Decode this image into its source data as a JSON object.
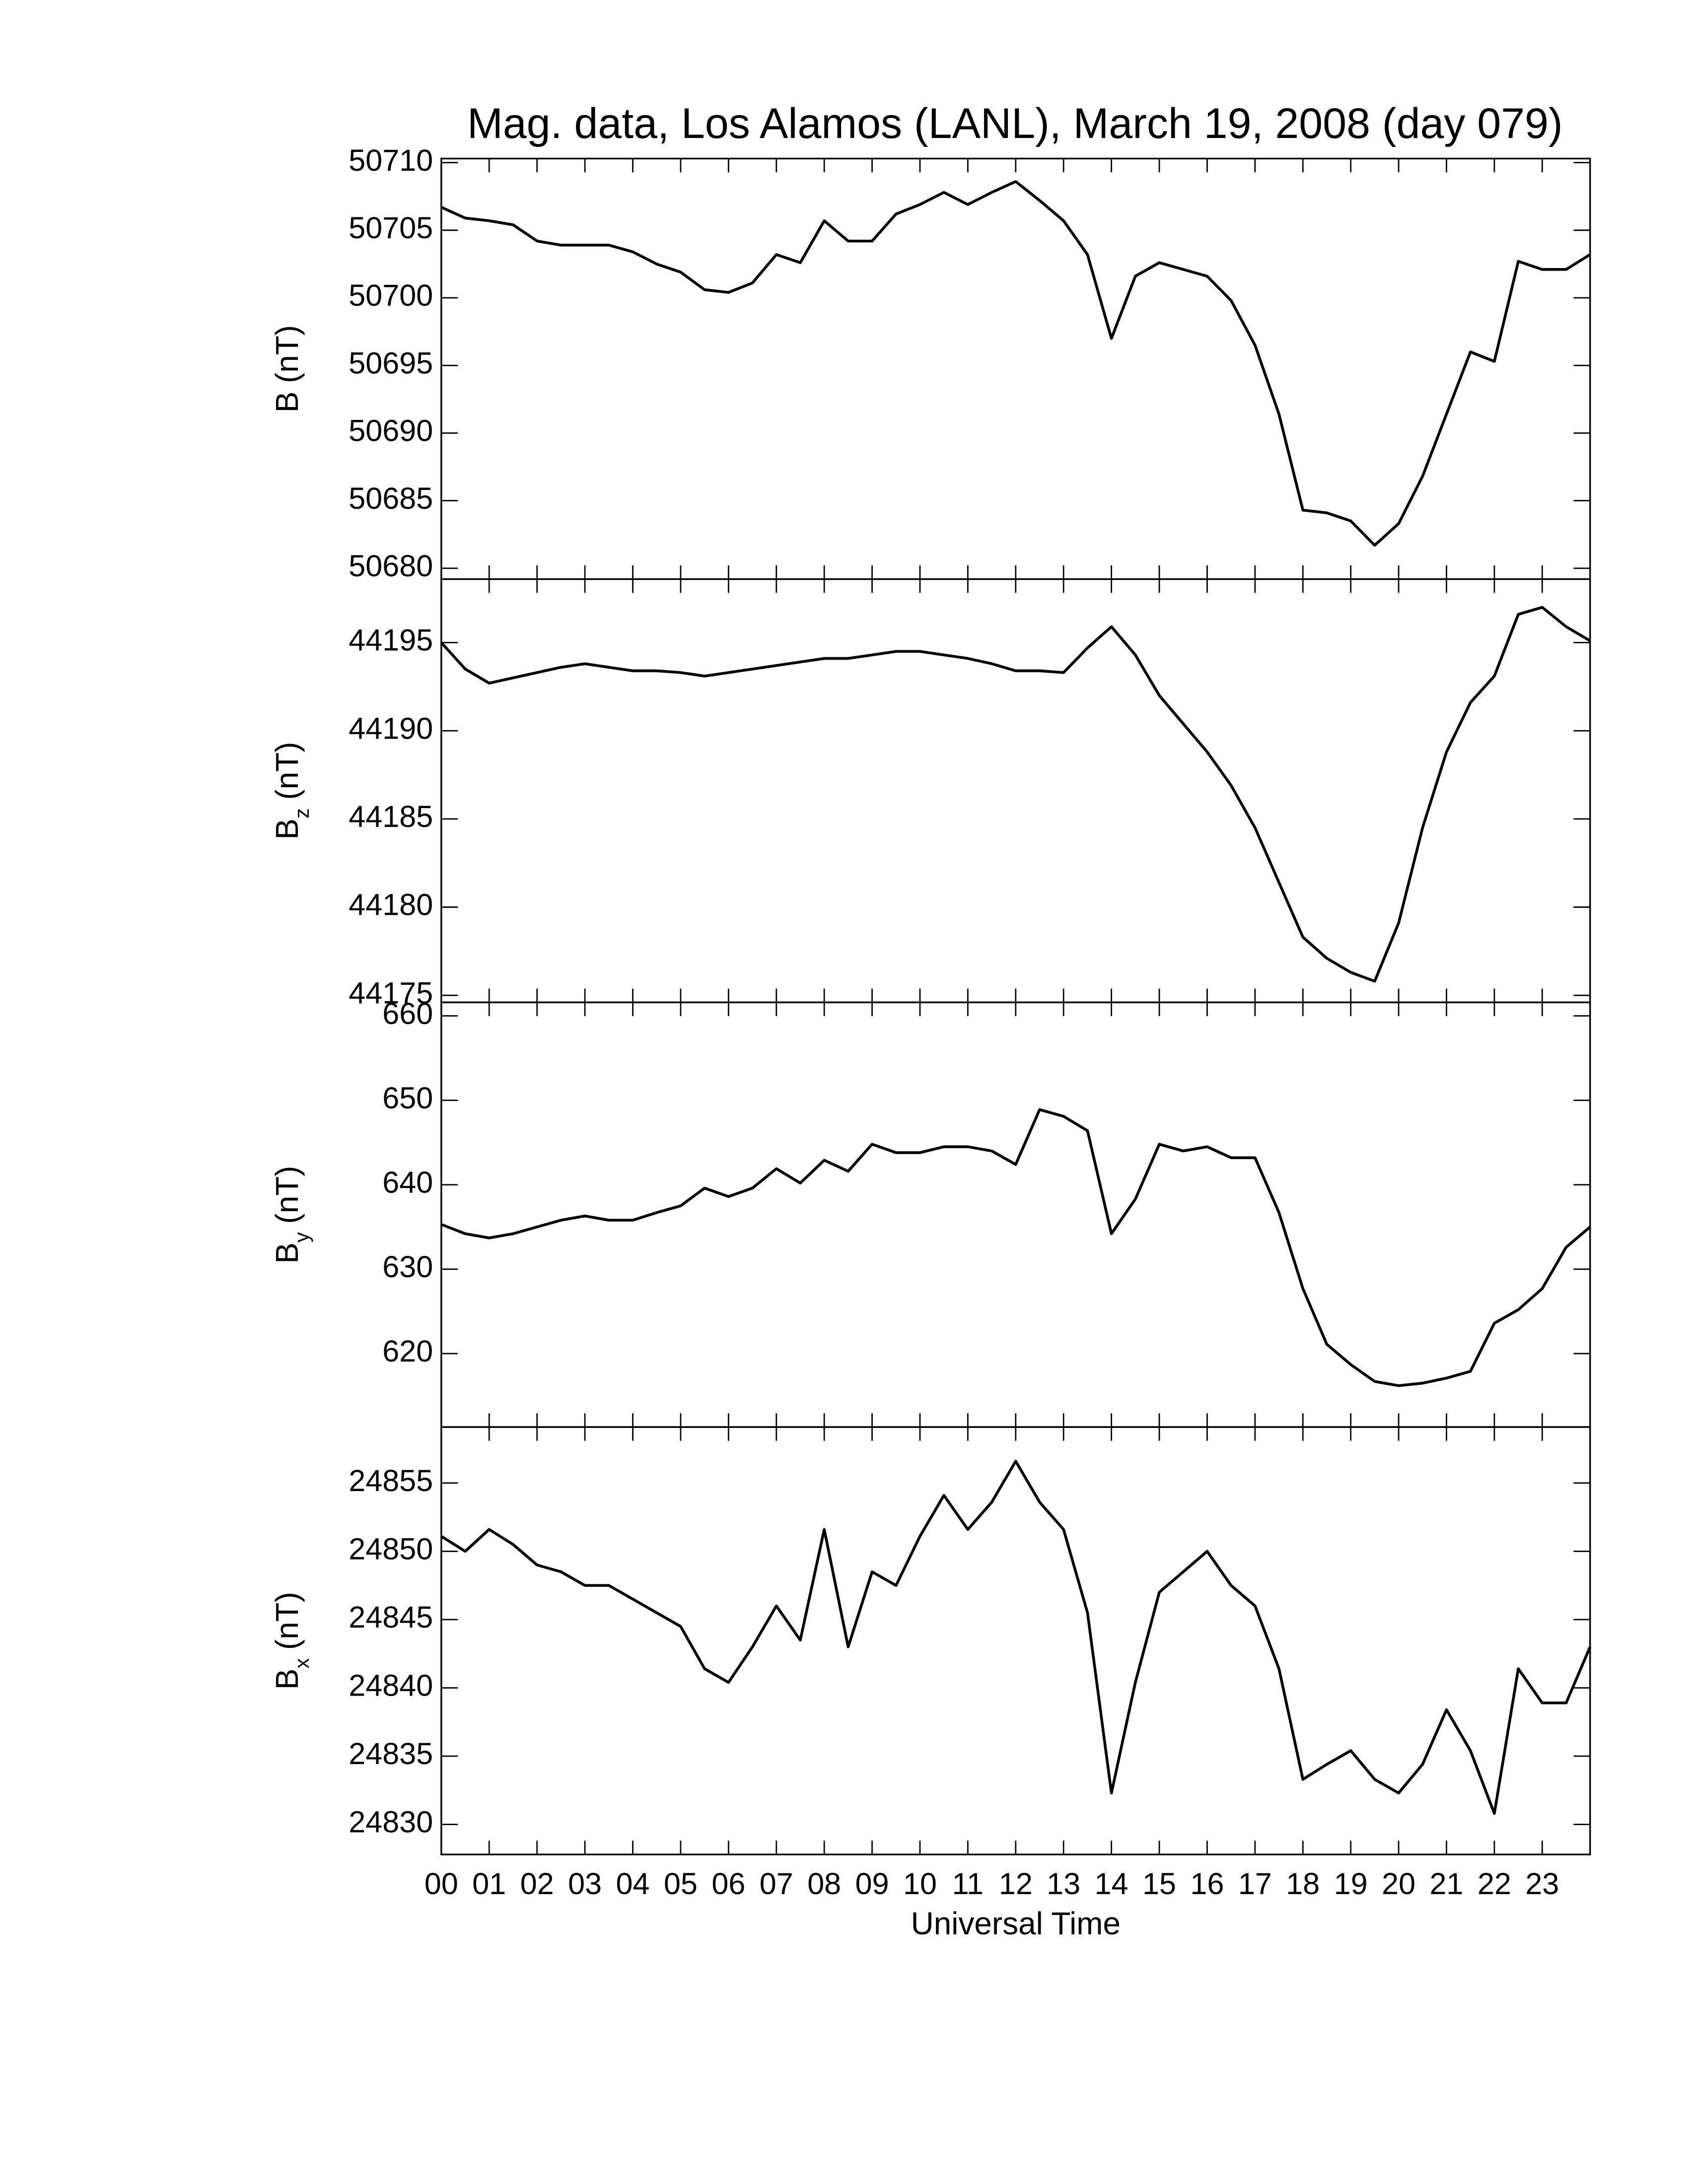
{
  "chart_data": [
    {
      "type": "line",
      "title": "Mag. data, Los Alamos (LANL), March 19, 2008 (day 079)",
      "ylabel": "B",
      "ylabel_unit": "(nT)",
      "color": "#000000",
      "xlim": [
        0,
        24
      ],
      "xticks": [
        {
          "value": 0,
          "label": "00"
        },
        {
          "value": 1,
          "label": "01"
        },
        {
          "value": 2,
          "label": "02"
        },
        {
          "value": 3,
          "label": "03"
        },
        {
          "value": 4,
          "label": "04"
        },
        {
          "value": 5,
          "label": "05"
        },
        {
          "value": 6,
          "label": "06"
        },
        {
          "value": 7,
          "label": "07"
        },
        {
          "value": 8,
          "label": "08"
        },
        {
          "value": 9,
          "label": "09"
        },
        10,
        11,
        12,
        13,
        14,
        15,
        16,
        17,
        18,
        19,
        20,
        21,
        22,
        23
      ],
      "ylim": [
        50679.2,
        50710.3
      ],
      "yticks": [
        50680,
        50685,
        50690,
        50695,
        50700,
        50705,
        50710
      ],
      "x": [
        0,
        0.5,
        1,
        1.5,
        2,
        2.5,
        3,
        3.5,
        4,
        4.5,
        5,
        5.5,
        6,
        6.5,
        7,
        7.5,
        8,
        8.5,
        9,
        9.5,
        10,
        10.5,
        11,
        11.5,
        12,
        12.5,
        13,
        13.5,
        14,
        14.5,
        15,
        15.5,
        16,
        16.5,
        17,
        17.5,
        18,
        18.5,
        19,
        19.5,
        20,
        20.5,
        21,
        21.5,
        22,
        22.5,
        23,
        23.5,
        24
      ],
      "values": [
        50706.7,
        50705.9,
        50705.7,
        50705.4,
        50704.2,
        50703.9,
        50703.9,
        50703.9,
        50703.4,
        50702.5,
        50701.9,
        50700.6,
        50700.4,
        50701.1,
        50703.2,
        50702.6,
        50705.7,
        50704.2,
        50704.2,
        50706.2,
        50706.9,
        50707.8,
        50706.9,
        50707.8,
        50708.6,
        50707.2,
        50705.7,
        50703.2,
        50697.0,
        50701.6,
        50702.6,
        50702.1,
        50701.6,
        50699.8,
        50696.5,
        50691.4,
        50684.3,
        50684.1,
        50683.5,
        50681.7,
        50683.3,
        50686.8,
        50691.4,
        50696.0,
        50695.3,
        50702.7,
        50702.1,
        50702.1,
        50703.2
      ]
    },
    {
      "type": "line",
      "ylabel": "B",
      "ylabel_subscript": "z",
      "ylabel_unit": "(nT)",
      "color": "#000000",
      "xlim": [
        0,
        24
      ],
      "xticks": [
        {
          "value": 0,
          "label": "00"
        },
        {
          "value": 1,
          "label": "01"
        },
        {
          "value": 2,
          "label": "02"
        },
        {
          "value": 3,
          "label": "03"
        },
        {
          "value": 4,
          "label": "04"
        },
        {
          "value": 5,
          "label": "05"
        },
        {
          "value": 6,
          "label": "06"
        },
        {
          "value": 7,
          "label": "07"
        },
        {
          "value": 8,
          "label": "08"
        },
        {
          "value": 9,
          "label": "09"
        },
        10,
        11,
        12,
        13,
        14,
        15,
        16,
        17,
        18,
        19,
        20,
        21,
        22,
        23
      ],
      "ylim": [
        44174.6,
        44198.6
      ],
      "yticks": [
        44175,
        44180,
        44185,
        44190,
        44195
      ],
      "x": [
        0,
        0.5,
        1,
        1.5,
        2,
        2.5,
        3,
        3.5,
        4,
        4.5,
        5,
        5.5,
        6,
        6.5,
        7,
        7.5,
        8,
        8.5,
        9,
        9.5,
        10,
        10.5,
        11,
        11.5,
        12,
        12.5,
        13,
        13.5,
        14,
        14.5,
        15,
        15.5,
        16,
        16.5,
        17,
        17.5,
        18,
        18.5,
        19,
        19.5,
        20,
        20.5,
        21,
        21.5,
        22,
        22.5,
        23,
        23.5,
        24
      ],
      "values": [
        44195.0,
        44193.5,
        44192.7,
        44193.0,
        44193.3,
        44193.6,
        44193.8,
        44193.6,
        44193.4,
        44193.4,
        44193.3,
        44193.1,
        44193.3,
        44193.5,
        44193.7,
        44193.9,
        44194.1,
        44194.1,
        44194.3,
        44194.5,
        44194.5,
        44194.3,
        44194.1,
        44193.8,
        44193.4,
        44193.4,
        44193.3,
        44194.7,
        44195.9,
        44194.3,
        44192.0,
        44190.4,
        44188.8,
        44186.9,
        44184.5,
        44181.4,
        44178.3,
        44177.1,
        44176.3,
        44175.8,
        44179.1,
        44184.5,
        44188.8,
        44191.6,
        44193.1,
        44196.6,
        44197.0,
        44195.9,
        44195.1
      ]
    },
    {
      "type": "line",
      "ylabel": "B",
      "ylabel_subscript": "y",
      "ylabel_unit": "(nT)",
      "color": "#000000",
      "xlim": [
        0,
        24
      ],
      "xticks": [
        {
          "value": 0,
          "label": "00"
        },
        {
          "value": 1,
          "label": "01"
        },
        {
          "value": 2,
          "label": "02"
        },
        {
          "value": 3,
          "label": "03"
        },
        {
          "value": 4,
          "label": "04"
        },
        {
          "value": 5,
          "label": "05"
        },
        {
          "value": 6,
          "label": "06"
        },
        {
          "value": 7,
          "label": "07"
        },
        {
          "value": 8,
          "label": "08"
        },
        {
          "value": 9,
          "label": "09"
        },
        10,
        11,
        12,
        13,
        14,
        15,
        16,
        17,
        18,
        19,
        20,
        21,
        22,
        23
      ],
      "ylim": [
        611.3,
        661.6
      ],
      "yticks": [
        620,
        630,
        640,
        650,
        660
      ],
      "x": [
        0,
        0.5,
        1,
        1.5,
        2,
        2.5,
        3,
        3.5,
        4,
        4.5,
        5,
        5.5,
        6,
        6.5,
        7,
        7.5,
        8,
        8.5,
        9,
        9.5,
        10,
        10.5,
        11,
        11.5,
        12,
        12.5,
        13,
        13.5,
        14,
        14.5,
        15,
        15.5,
        16,
        16.5,
        17,
        17.5,
        18,
        18.5,
        19,
        19.5,
        20,
        20.5,
        21,
        21.5,
        22,
        22.5,
        23,
        23.5,
        24
      ],
      "values": [
        635.3,
        634.2,
        633.7,
        634.2,
        635.0,
        635.8,
        636.3,
        635.8,
        635.8,
        636.7,
        637.5,
        639.6,
        638.6,
        639.6,
        641.9,
        640.2,
        642.9,
        641.6,
        644.8,
        643.8,
        643.8,
        644.5,
        644.5,
        644.0,
        642.4,
        648.9,
        648.1,
        646.4,
        634.2,
        638.3,
        644.8,
        644.0,
        644.5,
        643.2,
        643.2,
        636.7,
        627.7,
        621.1,
        618.7,
        616.7,
        616.2,
        616.5,
        617.1,
        617.9,
        623.6,
        625.2,
        627.7,
        632.6,
        635.0
      ]
    },
    {
      "type": "line",
      "ylabel": "B",
      "ylabel_subscript": "x",
      "ylabel_unit": "(nT)",
      "xlabel": "Universal Time",
      "color": "#000000",
      "xlim": [
        0,
        24
      ],
      "xticks": [
        {
          "value": 0,
          "label": "00"
        },
        {
          "value": 1,
          "label": "01"
        },
        {
          "value": 2,
          "label": "02"
        },
        {
          "value": 3,
          "label": "03"
        },
        {
          "value": 4,
          "label": "04"
        },
        {
          "value": 5,
          "label": "05"
        },
        {
          "value": 6,
          "label": "06"
        },
        {
          "value": 7,
          "label": "07"
        },
        {
          "value": 8,
          "label": "08"
        },
        {
          "value": 9,
          "label": "09"
        },
        10,
        11,
        12,
        13,
        14,
        15,
        16,
        17,
        18,
        19,
        20,
        21,
        22,
        23
      ],
      "ylim": [
        24827.8,
        24859.1
      ],
      "yticks": [
        24830,
        24835,
        24840,
        24845,
        24850,
        24855
      ],
      "x": [
        0,
        0.5,
        1,
        1.5,
        2,
        2.5,
        3,
        3.5,
        4,
        4.5,
        5,
        5.5,
        6,
        6.5,
        7,
        7.5,
        8,
        8.5,
        9,
        9.5,
        10,
        10.5,
        11,
        11.5,
        12,
        12.5,
        13,
        13.5,
        14,
        14.5,
        15,
        15.5,
        16,
        16.5,
        17,
        17.5,
        18,
        18.5,
        19,
        19.5,
        20,
        20.5,
        21,
        21.5,
        22,
        22.5,
        23,
        23.5,
        24
      ],
      "values": [
        24851.1,
        24850.0,
        24851.6,
        24850.5,
        24849.0,
        24848.5,
        24847.5,
        24847.5,
        24846.5,
        24845.5,
        24844.5,
        24841.4,
        24840.4,
        24843.0,
        24846.0,
        24843.5,
        24851.6,
        24843.0,
        24848.5,
        24847.5,
        24851.1,
        24854.1,
        24851.6,
        24853.6,
        24856.6,
        24853.6,
        24851.6,
        24845.5,
        24832.3,
        24840.4,
        24847.0,
        24848.5,
        24850.0,
        24847.5,
        24846.0,
        24841.4,
        24833.3,
        24834.4,
        24835.4,
        24833.3,
        24832.3,
        24834.4,
        24838.4,
        24835.4,
        24830.8,
        24841.4,
        24838.9,
        24838.9,
        24843.0
      ]
    }
  ]
}
